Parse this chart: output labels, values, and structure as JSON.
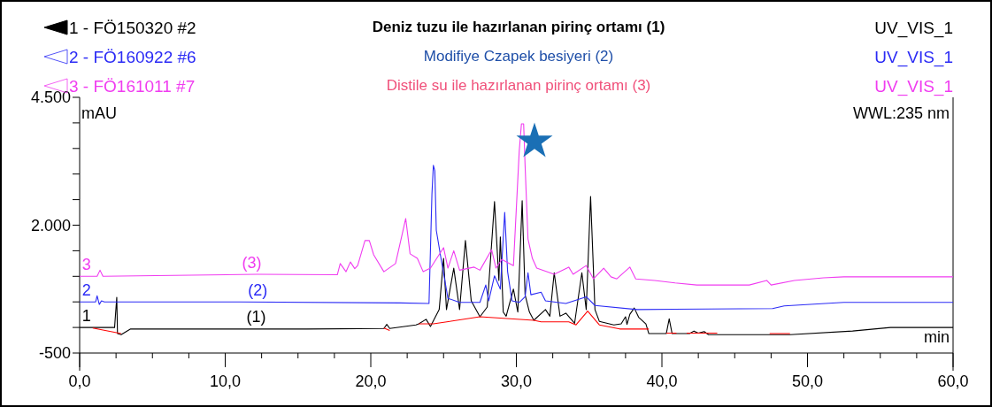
{
  "chart_data": {
    "type": "line",
    "xlabel": "min",
    "ylabel": "mAU",
    "legend": "top left",
    "grid": false,
    "marker": "none",
    "line_style": "solid",
    "xlim": [
      0,
      60
    ],
    "ylim": [
      -500,
      4500
    ],
    "xticks": [
      {
        "value": 0,
        "label": "0,0"
      },
      {
        "value": 2.5,
        "label": null
      },
      {
        "value": 5,
        "label": null
      },
      {
        "value": 7.5,
        "label": null
      },
      {
        "value": 10,
        "label": "10,0"
      },
      {
        "value": 12.5,
        "label": null
      },
      {
        "value": 15,
        "label": null
      },
      {
        "value": 17.5,
        "label": null
      },
      {
        "value": 20,
        "label": "20,0"
      },
      {
        "value": 22.5,
        "label": null
      },
      {
        "value": 25,
        "label": null
      },
      {
        "value": 27.5,
        "label": null
      },
      {
        "value": 30,
        "label": "30,0"
      },
      {
        "value": 32.5,
        "label": null
      },
      {
        "value": 35,
        "label": null
      },
      {
        "value": 37.5,
        "label": null
      },
      {
        "value": 40,
        "label": "40,0"
      },
      {
        "value": 42.5,
        "label": null
      },
      {
        "value": 45,
        "label": null
      },
      {
        "value": 47.5,
        "label": null
      },
      {
        "value": 50,
        "label": "50,0"
      },
      {
        "value": 52.5,
        "label": null
      },
      {
        "value": 55,
        "label": null
      },
      {
        "value": 57.5,
        "label": null
      },
      {
        "value": 60,
        "label": "60,0"
      }
    ],
    "yticks": [
      {
        "value": -500,
        "label": "-500"
      },
      {
        "value": 0,
        "label": null
      },
      {
        "value": 500,
        "label": null
      },
      {
        "value": 1000,
        "label": null
      },
      {
        "value": 1500,
        "label": null
      },
      {
        "value": 2000,
        "label": "2.000"
      },
      {
        "value": 2500,
        "label": null
      },
      {
        "value": 3000,
        "label": null
      },
      {
        "value": 3500,
        "label": null
      },
      {
        "value": 4000,
        "label": null
      },
      {
        "value": 4500,
        "label": "4.500"
      }
    ],
    "series": [
      {
        "name": "1 - FÖ150320 #2",
        "color": "#000000",
        "x": [
          0,
          1.5,
          2.4,
          2.55,
          2.6,
          2.85,
          3.5,
          15.6,
          20.9,
          21.1,
          21.3,
          23.1,
          23.3,
          23.8,
          24.1,
          24.7,
          25.0,
          25.2,
          25.7,
          26.1,
          26.5,
          26.9,
          27.5,
          28.0,
          28.5,
          28.8,
          28.9,
          29.1,
          29.3,
          29.8,
          30.1,
          30.4,
          30.6,
          30.9,
          31.2,
          32.0,
          32.3,
          32.6,
          33.0,
          33.4,
          34.0,
          34.5,
          34.8,
          35.1,
          35.4,
          35.7,
          36.7,
          37.2,
          37.5,
          37.6,
          37.8,
          38.1,
          38.4,
          38.9,
          39.1,
          40.3,
          40.5,
          40.7,
          41.9,
          42.2,
          42.5,
          42.9,
          43.2,
          47.4,
          48.8,
          53.1,
          55.7,
          60
        ],
        "values": [
          0,
          0,
          0,
          590,
          -120,
          -140,
          -30,
          -30,
          -20,
          60,
          -20,
          50,
          70,
          160,
          20,
          350,
          1350,
          350,
          1160,
          350,
          1700,
          520,
          210,
          400,
          2460,
          920,
          1770,
          300,
          220,
          750,
          300,
          2480,
          640,
          300,
          140,
          350,
          220,
          1070,
          220,
          280,
          80,
          1070,
          350,
          2560,
          350,
          120,
          50,
          70,
          210,
          60,
          260,
          380,
          200,
          70,
          -120,
          -120,
          170,
          -120,
          -120,
          -70,
          -110,
          -80,
          -140,
          -140,
          -140,
          -70,
          0,
          0
        ]
      },
      {
        "name": "2 - FÖ160922 #6",
        "color": "#2a2af5",
        "x": [
          0,
          1.1,
          1.2,
          1.35,
          1.5,
          1.7,
          11,
          22,
          24.0,
          24.2,
          24.3,
          24.4,
          24.5,
          24.8,
          25.3,
          26.1,
          27.5,
          27.9,
          28.1,
          28.5,
          28.9,
          29.2,
          29.4,
          29.7,
          30.2,
          30.6,
          30.8,
          31.0,
          31.7,
          32.0,
          33.4,
          34.8,
          35.4,
          38.3,
          47.6,
          48.4,
          52.5,
          60
        ],
        "values": [
          500,
          500,
          620,
          450,
          520,
          500,
          500,
          480,
          470,
          2600,
          3170,
          3060,
          1900,
          1390,
          570,
          490,
          490,
          830,
          520,
          1010,
          750,
          2250,
          1090,
          520,
          490,
          600,
          1070,
          640,
          690,
          520,
          470,
          600,
          430,
          350,
          370,
          420,
          490,
          490
        ]
      },
      {
        "name": "3 - FÖ161011 #7",
        "color": "#f03cf0",
        "x": [
          0,
          1.2,
          1.4,
          1.6,
          12.2,
          17.7,
          17.9,
          18.3,
          18.6,
          18.9,
          19.1,
          19.6,
          19.9,
          20.2,
          20.9,
          21.7,
          22.4,
          22.7,
          23.2,
          23.6,
          24.1,
          25.0,
          25.3,
          25.7,
          26.1,
          27.1,
          27.5,
          28.3,
          28.6,
          29.0,
          29.8,
          30.2,
          30.35,
          30.5,
          30.6,
          30.8,
          31.1,
          31.4,
          32.6,
          33.6,
          33.9,
          34.8,
          35.3,
          36.0,
          36.5,
          36.9,
          37.8,
          38.2,
          39.5,
          40.9,
          42.4,
          45.0,
          46.0,
          47.2,
          47.5,
          49.1,
          51.1,
          52.5,
          60
        ],
        "values": [
          1000,
          1000,
          1120,
          1000,
          1040,
          1030,
          1250,
          1090,
          1280,
          1150,
          1210,
          1700,
          1700,
          1420,
          1090,
          1250,
          2130,
          1440,
          1350,
          1090,
          1160,
          1560,
          1160,
          1500,
          1120,
          1180,
          1120,
          1520,
          1160,
          1330,
          1210,
          3460,
          3980,
          3980,
          3170,
          1730,
          1350,
          1160,
          1040,
          1180,
          1040,
          1210,
          950,
          1160,
          990,
          950,
          1180,
          950,
          920,
          870,
          830,
          830,
          830,
          920,
          830,
          920,
          970,
          990,
          990
        ]
      },
      {
        "color": "#ff0000",
        "x": [
          0.9,
          2.85,
          3.0,
          20.9,
          21.3,
          21.5,
          23.3,
          24.3,
          27.5,
          31.2,
          31.7,
          33.6,
          34.1,
          34.9,
          35.7,
          37.1,
          39.1,
          39.5,
          40.3,
          41.0,
          41.3,
          41.7,
          43.8,
          44,
          47.4,
          48.8
        ],
        "values": [
          -10,
          -120,
          null,
          -10,
          -60,
          null,
          70,
          70,
          210,
          140,
          110,
          110,
          50,
          320,
          50,
          -30,
          -30,
          null,
          -110,
          -110,
          null,
          -110,
          -110,
          null,
          -120,
          -120
        ]
      }
    ],
    "annotations": [
      "Deniz tuzu ile hazırlanan pirinç ortamı (1)",
      "Modifiye Czapek besiyeri (2)",
      "Distile su ile hazırlanan pirinç ortamı (3)",
      "UV_VIS_1",
      "UV_VIS_1",
      "UV_VIS_1",
      "WWL:235 nm",
      {
        "text": "(3)",
        "x": 11.1,
        "y": 1040
      },
      {
        "text": "(2)",
        "x": 11.5,
        "y": 500
      },
      {
        "text": "(1)",
        "x": 11.4,
        "y": -20
      },
      {
        "text": "3",
        "x": 0.1,
        "y": 1000
      },
      {
        "text": "2",
        "x": 0.1,
        "y": 500
      },
      {
        "text": "1",
        "x": 0.1,
        "y": 0
      }
    ]
  }
}
